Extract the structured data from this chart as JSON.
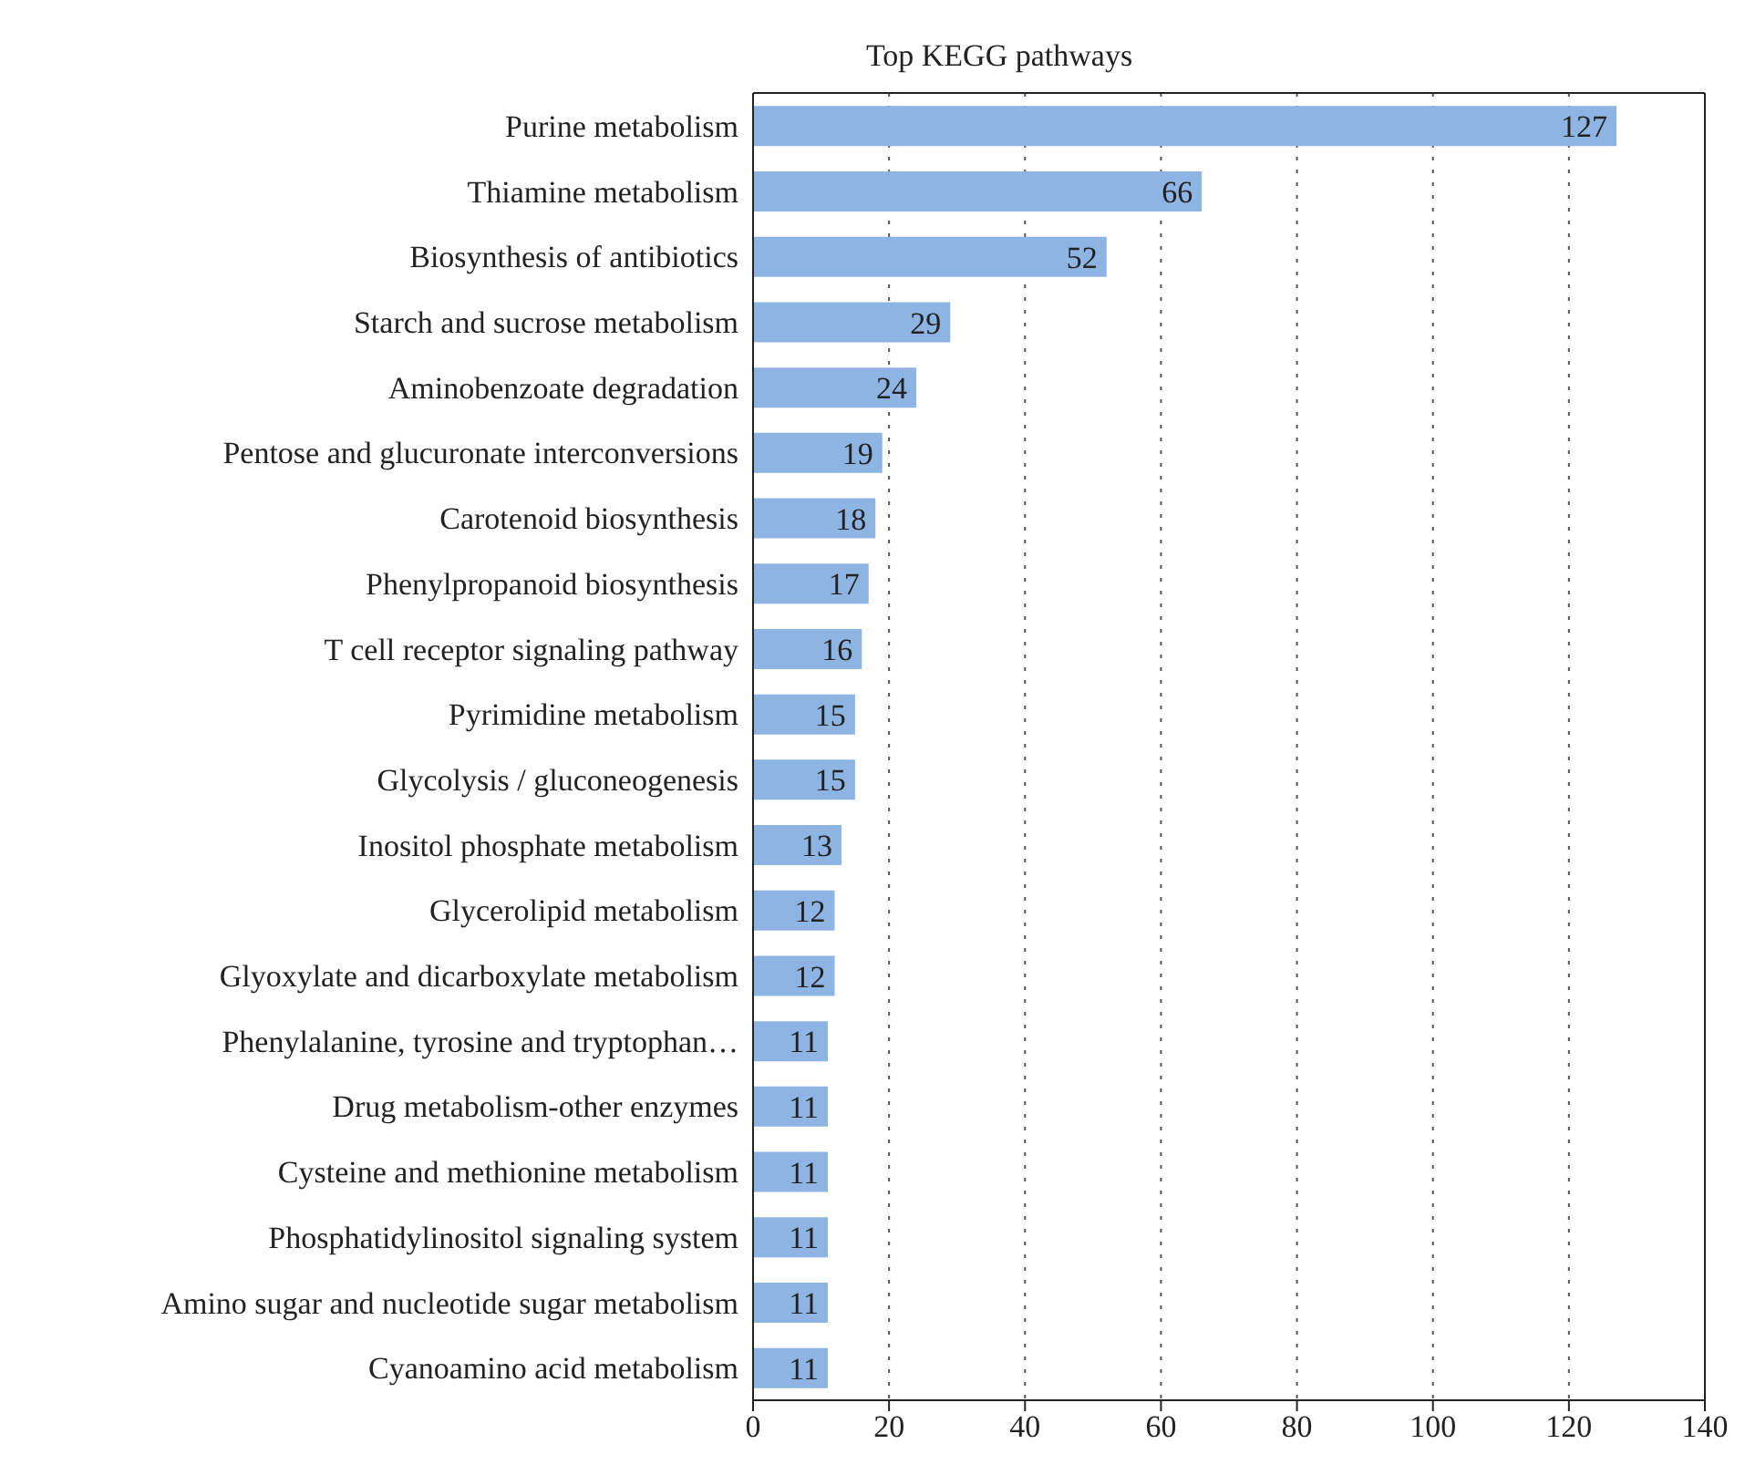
{
  "chart_data": {
    "type": "bar",
    "orientation": "horizontal",
    "title": "Top KEGG pathways",
    "categories": [
      "Purine metabolism",
      "Thiamine metabolism",
      "Biosynthesis of antibiotics",
      "Starch and sucrose metabolism",
      "Aminobenzoate degradation",
      "Pentose and glucuronate interconversions",
      "Carotenoid biosynthesis",
      "Phenylpropanoid biosynthesis",
      "T cell receptor signaling pathway",
      "Pyrimidine metabolism",
      "Glycolysis / gluconeogenesis",
      "Inositol phosphate metabolism",
      "Glycerolipid metabolism",
      "Glyoxylate and dicarboxylate metabolism",
      "Phenylalanine, tyrosine and tryptophan…",
      "Drug metabolism-other enzymes",
      "Cysteine and methionine metabolism",
      "Phosphatidylinositol signaling system",
      "Amino sugar and nucleotide sugar metabolism",
      "Cyanoamino acid metabolism"
    ],
    "values": [
      127,
      66,
      52,
      29,
      24,
      19,
      18,
      17,
      16,
      15,
      15,
      13,
      12,
      12,
      11,
      11,
      11,
      11,
      11,
      11
    ],
    "color": "#8db4e2",
    "xlim": [
      0,
      140
    ],
    "xticks": [
      0,
      20,
      40,
      60,
      80,
      100,
      120,
      140
    ],
    "grid": "x",
    "data_labels": true
  }
}
